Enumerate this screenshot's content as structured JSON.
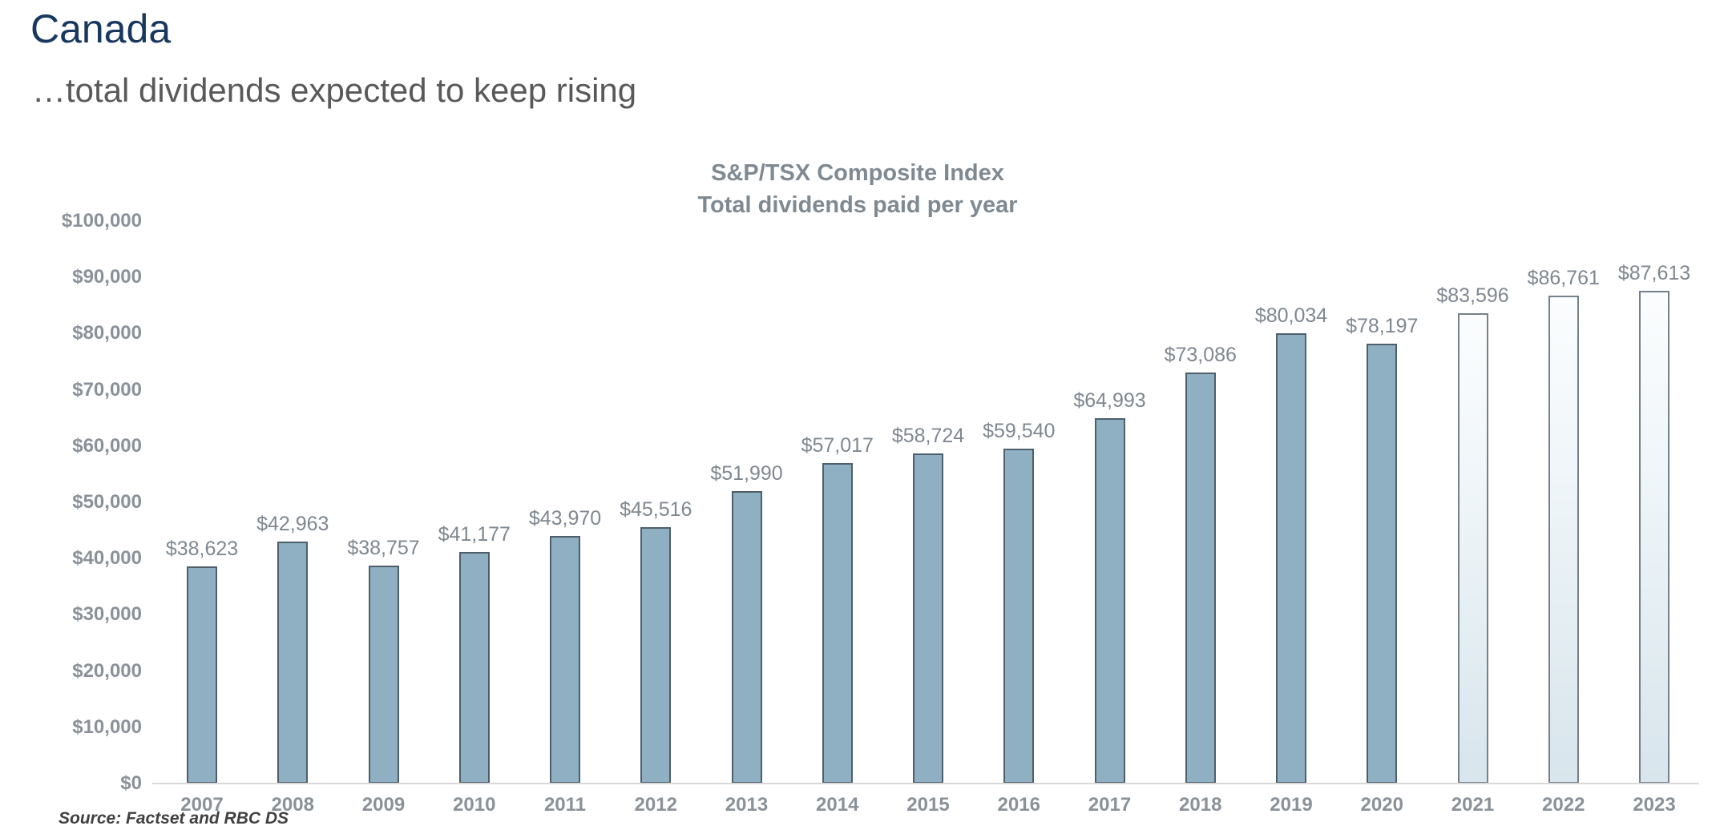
{
  "page": {
    "title": "Canada",
    "subtitle": "…total dividends expected to keep rising",
    "source": "Source: Factset and RBC DS"
  },
  "chart_data": {
    "type": "bar",
    "title_line1": "S&P/TSX Composite Index",
    "title_line2": "Total dividends paid per year",
    "categories": [
      "2007",
      "2008",
      "2009",
      "2010",
      "2011",
      "2012",
      "2013",
      "2014",
      "2015",
      "2016",
      "2017",
      "2018",
      "2019",
      "2020",
      "2021",
      "2022",
      "2023"
    ],
    "values": [
      38623,
      42963,
      38757,
      41177,
      43970,
      45516,
      51990,
      57017,
      58724,
      59540,
      64993,
      73086,
      80034,
      78197,
      83596,
      86761,
      87613
    ],
    "value_labels": [
      "$38,623",
      "$42,963",
      "$38,757",
      "$41,177",
      "$43,970",
      "$45,516",
      "$51,990",
      "$57,017",
      "$58,724",
      "$59,540",
      "$64,993",
      "$73,086",
      "$80,034",
      "$78,197",
      "$83,596",
      "$86,761",
      "$87,613"
    ],
    "forecast_categories": [
      "2021",
      "2022",
      "2023"
    ],
    "y_ticks": [
      {
        "value": 0,
        "label": "$0"
      },
      {
        "value": 10000,
        "label": "$10,000"
      },
      {
        "value": 20000,
        "label": "$20,000"
      },
      {
        "value": 30000,
        "label": "$30,000"
      },
      {
        "value": 40000,
        "label": "$40,000"
      },
      {
        "value": 50000,
        "label": "$50,000"
      },
      {
        "value": 60000,
        "label": "$60,000"
      },
      {
        "value": 70000,
        "label": "$70,000"
      },
      {
        "value": 80000,
        "label": "$80,000"
      },
      {
        "value": 90000,
        "label": "$90,000"
      },
      {
        "value": 100000,
        "label": "$100,000"
      }
    ],
    "ylim": [
      0,
      100000
    ],
    "grid": false,
    "legend": "none",
    "colors": {
      "title": "#17375E",
      "subtitle": "#595959",
      "chart_title": "#7F8992",
      "axis_label": "#8A9199",
      "data_label": "#7F8790",
      "bar_fill": "#8FB0C2",
      "bar_border": "#4E5F6B",
      "forecast_fill_top": "#FBFDFE",
      "forecast_fill_bottom": "#D8E5EC",
      "forecast_border": "#75808A",
      "axis_line": "#D9D9D9",
      "source": "#404040"
    }
  }
}
